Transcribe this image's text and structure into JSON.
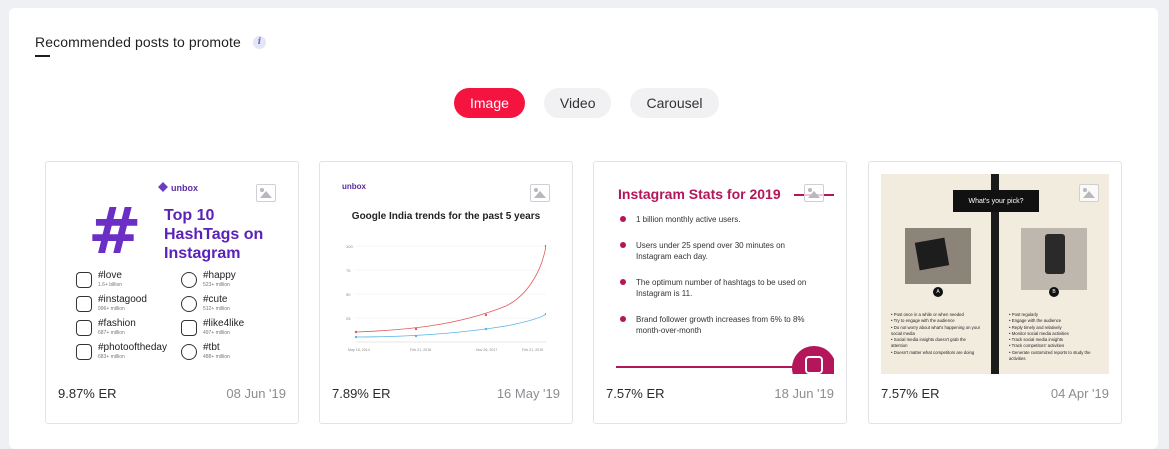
{
  "section": {
    "title": "Recommended posts to promote",
    "info_icon": "info-icon"
  },
  "tabs": [
    {
      "label": "Image",
      "active": true
    },
    {
      "label": "Video",
      "active": false
    },
    {
      "label": "Carousel",
      "active": false
    }
  ],
  "colors": {
    "accent": "#f5133f",
    "card_border": "#e3e3e6"
  },
  "posts": [
    {
      "er": "9.87% ER",
      "date": "08 Jun '19",
      "thumb": {
        "logo": "unbox",
        "title": "Top 10 HashTags on Instagram",
        "hashtags": [
          {
            "name": "#love",
            "count": "1.6+ billion"
          },
          {
            "name": "#happy",
            "count": "523+ million"
          },
          {
            "name": "#instagood",
            "count": "996+ million"
          },
          {
            "name": "#cute",
            "count": "512+ million"
          },
          {
            "name": "#fashion",
            "count": "687+ million"
          },
          {
            "name": "#like4like",
            "count": "497+ million"
          },
          {
            "name": "#photooftheday",
            "count": "683+ million"
          },
          {
            "name": "#tbt",
            "count": "488+ million"
          }
        ]
      }
    },
    {
      "er": "7.89% ER",
      "date": "16 May '19",
      "thumb": {
        "logo": "unbox",
        "title": "Google India trends for the past 5 years",
        "x_ticks": [
          "May 18, 2014",
          "Feb 21, 2016",
          "Nov 26, 2017",
          "Feb 21, 2019"
        ],
        "y_ticks": [
          "100",
          "75",
          "50",
          "25"
        ]
      }
    },
    {
      "er": "7.57% ER",
      "date": "18 Jun '19",
      "thumb": {
        "title": "Instagram Stats for 2019",
        "stats": [
          "1 billion monthly active users.",
          "Users under 25 spend over 30 minutes on Instagram each day.",
          "The optimum number of hashtags to be used on Instagram is 11.",
          "Brand follower growth increases from 6% to 8% month-over-month"
        ]
      }
    },
    {
      "er": "7.57% ER",
      "date": "04 Apr '19",
      "thumb": {
        "title": "What's your pick?",
        "badge_a": "A",
        "badge_b": "B",
        "list_a": [
          "Post once in a while or when needed",
          "Try to engage with the audience",
          "Do not worry about what's happening on your social media",
          "Social media insights doesn't grab the attention",
          "Doesn't matter what competitors are doing"
        ],
        "list_b": [
          "Post regularly",
          "Engage with the audience",
          "Reply timely and relatively",
          "Monitor social media activities",
          "Track social media insights",
          "Track competitors' activities",
          "Generate customized reports to study the activities"
        ]
      }
    }
  ]
}
